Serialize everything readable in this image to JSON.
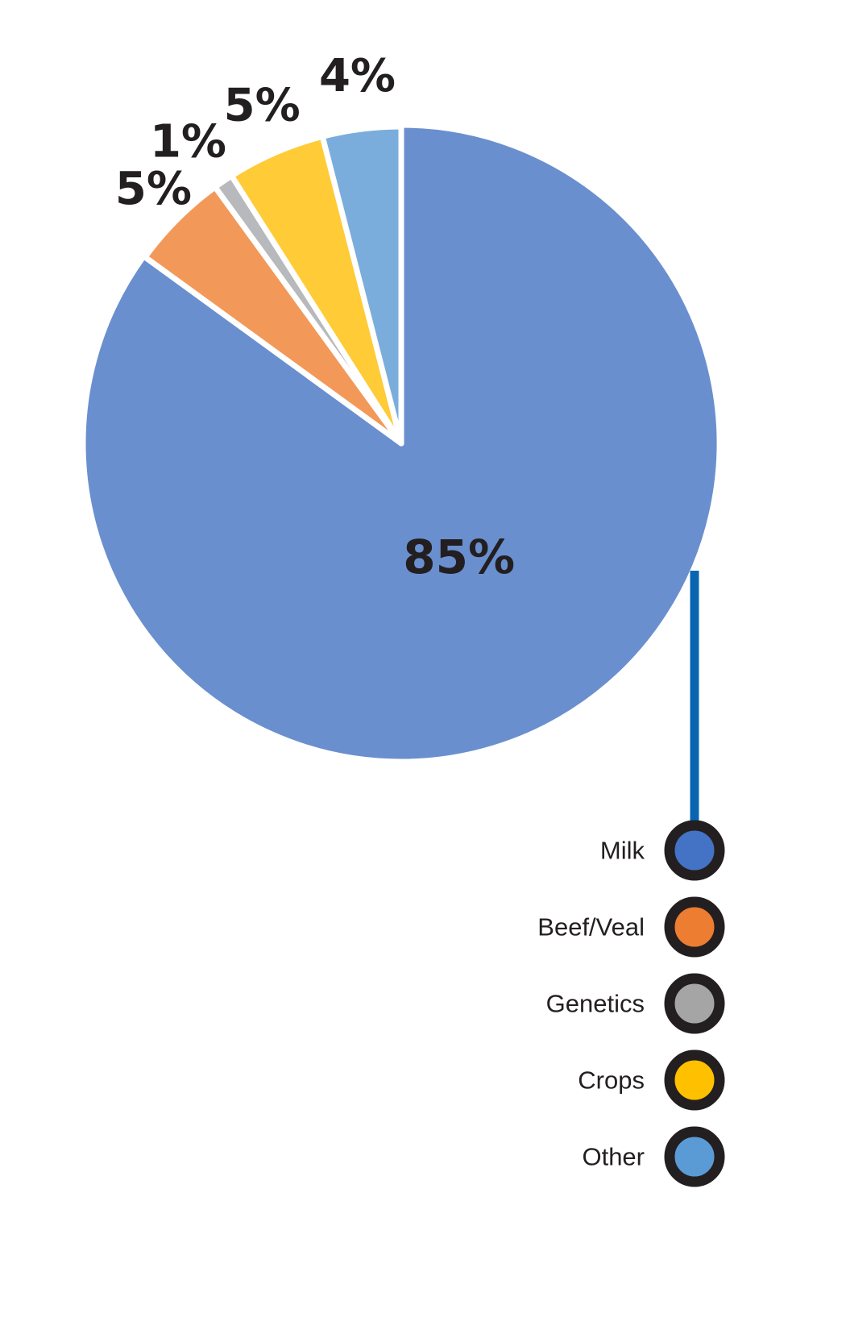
{
  "chart_data": {
    "type": "pie",
    "title": "",
    "slices": [
      {
        "name": "Milk",
        "value": 85,
        "label": "85%",
        "color": "#6a8fcf",
        "legend_color": "#4472c4"
      },
      {
        "name": "Beef/Veal",
        "value": 5,
        "label": "5%",
        "color": "#f2995a",
        "legend_color": "#ed7d31"
      },
      {
        "name": "Genetics",
        "value": 1,
        "label": "1%",
        "color": "#b7b9bd",
        "legend_color": "#a5a5a5"
      },
      {
        "name": "Crops",
        "value": 5,
        "label": "5%",
        "color": "#ffcb36",
        "legend_color": "#ffc000"
      },
      {
        "name": "Other",
        "value": 4,
        "label": "4%",
        "color": "#7aaddc",
        "legend_color": "#5b9bd5"
      }
    ],
    "legend_position": "bottom-right",
    "connector_color": "#0a65b0"
  }
}
